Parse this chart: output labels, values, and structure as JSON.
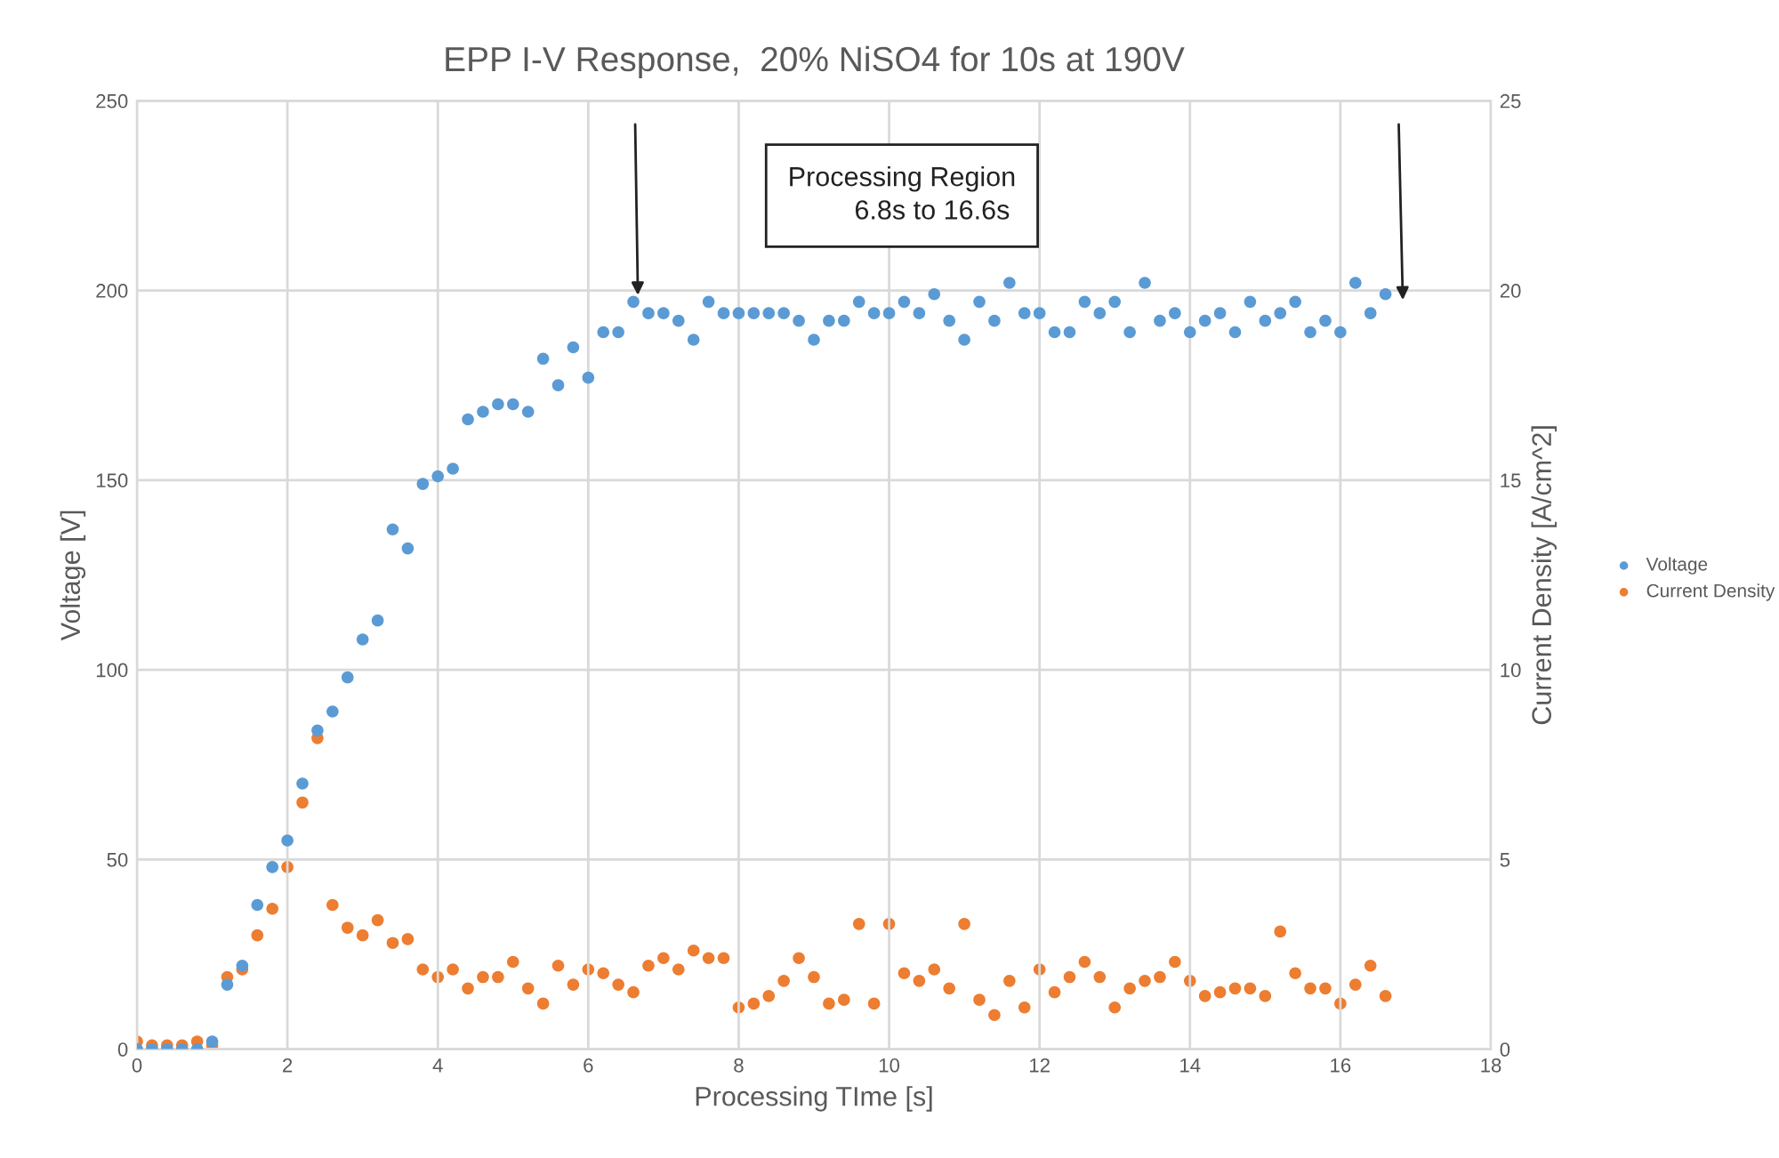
{
  "chart_data": {
    "type": "scatter",
    "title": "EPP I-V Response,  20% NiSO4 for 10s at 190V",
    "xlabel": "Processing TIme [s]",
    "ylabel": "Voltage [V]",
    "y2label": "Current Density [A/cm^2]",
    "x": [
      0,
      0.2,
      0.4,
      0.6,
      0.8,
      1.0,
      1.2,
      1.4,
      1.6,
      1.8,
      2.0,
      2.2,
      2.4,
      2.6,
      2.8,
      3.0,
      3.2,
      3.4,
      3.6,
      3.8,
      4.0,
      4.2,
      4.4,
      4.6,
      4.8,
      5.0,
      5.2,
      5.4,
      5.6,
      5.8,
      6.0,
      6.2,
      6.4,
      6.6,
      6.8,
      7.0,
      7.2,
      7.4,
      7.6,
      7.8,
      8.0,
      8.2,
      8.4,
      8.6,
      8.8,
      9.0,
      9.2,
      9.4,
      9.6,
      9.8,
      10.0,
      10.2,
      10.4,
      10.6,
      10.8,
      11.0,
      11.2,
      11.4,
      11.6,
      11.8,
      12.0,
      12.2,
      12.4,
      12.6,
      12.8,
      13.0,
      13.2,
      13.4,
      13.6,
      13.8,
      14.0,
      14.2,
      14.4,
      14.6,
      14.8,
      15.0,
      15.2,
      15.4,
      15.6,
      15.8,
      16.0,
      16.2,
      16.4,
      16.6
    ],
    "series": [
      {
        "name": "Voltage",
        "color": "#5b9bd5",
        "values": [
          0,
          0,
          0,
          0,
          0,
          2,
          17,
          22,
          38,
          48,
          55,
          70,
          84,
          89,
          98,
          108,
          113,
          137,
          132,
          149,
          151,
          153,
          166,
          168,
          170,
          170,
          168,
          182,
          175,
          185,
          177,
          189,
          189,
          197,
          194,
          194,
          192,
          187,
          197,
          194,
          194,
          194,
          194,
          194,
          192,
          187,
          192,
          192,
          197,
          194,
          194,
          197,
          194,
          199,
          192,
          187,
          197,
          192,
          202,
          194,
          194,
          189,
          189,
          197,
          194,
          197,
          189,
          202,
          192,
          194,
          189,
          192,
          194,
          189,
          197,
          192,
          194,
          197,
          189,
          192,
          189,
          202,
          194,
          199
        ]
      },
      {
        "name": "Current Density",
        "color": "#ed7d31",
        "axis": "y2",
        "values": [
          0.2,
          0.1,
          0.1,
          0.1,
          0.2,
          0.1,
          1.9,
          2.1,
          3.0,
          3.7,
          4.8,
          6.5,
          8.2,
          3.8,
          3.2,
          3.0,
          3.4,
          2.8,
          2.9,
          2.1,
          1.9,
          2.1,
          1.6,
          1.9,
          1.9,
          2.3,
          1.6,
          1.2,
          2.2,
          1.7,
          2.1,
          2.0,
          1.7,
          1.5,
          2.2,
          2.4,
          2.1,
          2.6,
          2.4,
          2.4,
          1.1,
          1.2,
          1.4,
          1.8,
          2.4,
          1.9,
          1.2,
          1.3,
          3.3,
          1.2,
          3.3,
          2.0,
          1.8,
          2.1,
          1.6,
          3.3,
          1.3,
          0.9,
          1.8,
          1.1,
          2.1,
          1.5,
          1.9,
          2.3,
          1.9,
          1.1,
          1.6,
          1.8,
          1.9,
          2.3,
          1.8,
          1.4,
          1.5,
          1.6,
          1.6,
          1.4,
          3.1,
          2.0,
          1.6,
          1.6,
          1.2,
          1.7,
          2.2,
          1.4
        ]
      }
    ],
    "xlim": [
      0,
      18
    ],
    "xticks": [
      0,
      2,
      4,
      6,
      8,
      10,
      12,
      14,
      16,
      18
    ],
    "ylim": [
      0,
      250
    ],
    "yticks": [
      0,
      50,
      100,
      150,
      200,
      250
    ],
    "y2lim": [
      0,
      25
    ],
    "y2ticks": [
      0,
      5,
      10,
      15,
      20,
      25
    ],
    "grid": true,
    "legend": "right",
    "marker": "circle",
    "annotations": [
      "Processing Region\n        6.8s to 16.6s"
    ]
  }
}
